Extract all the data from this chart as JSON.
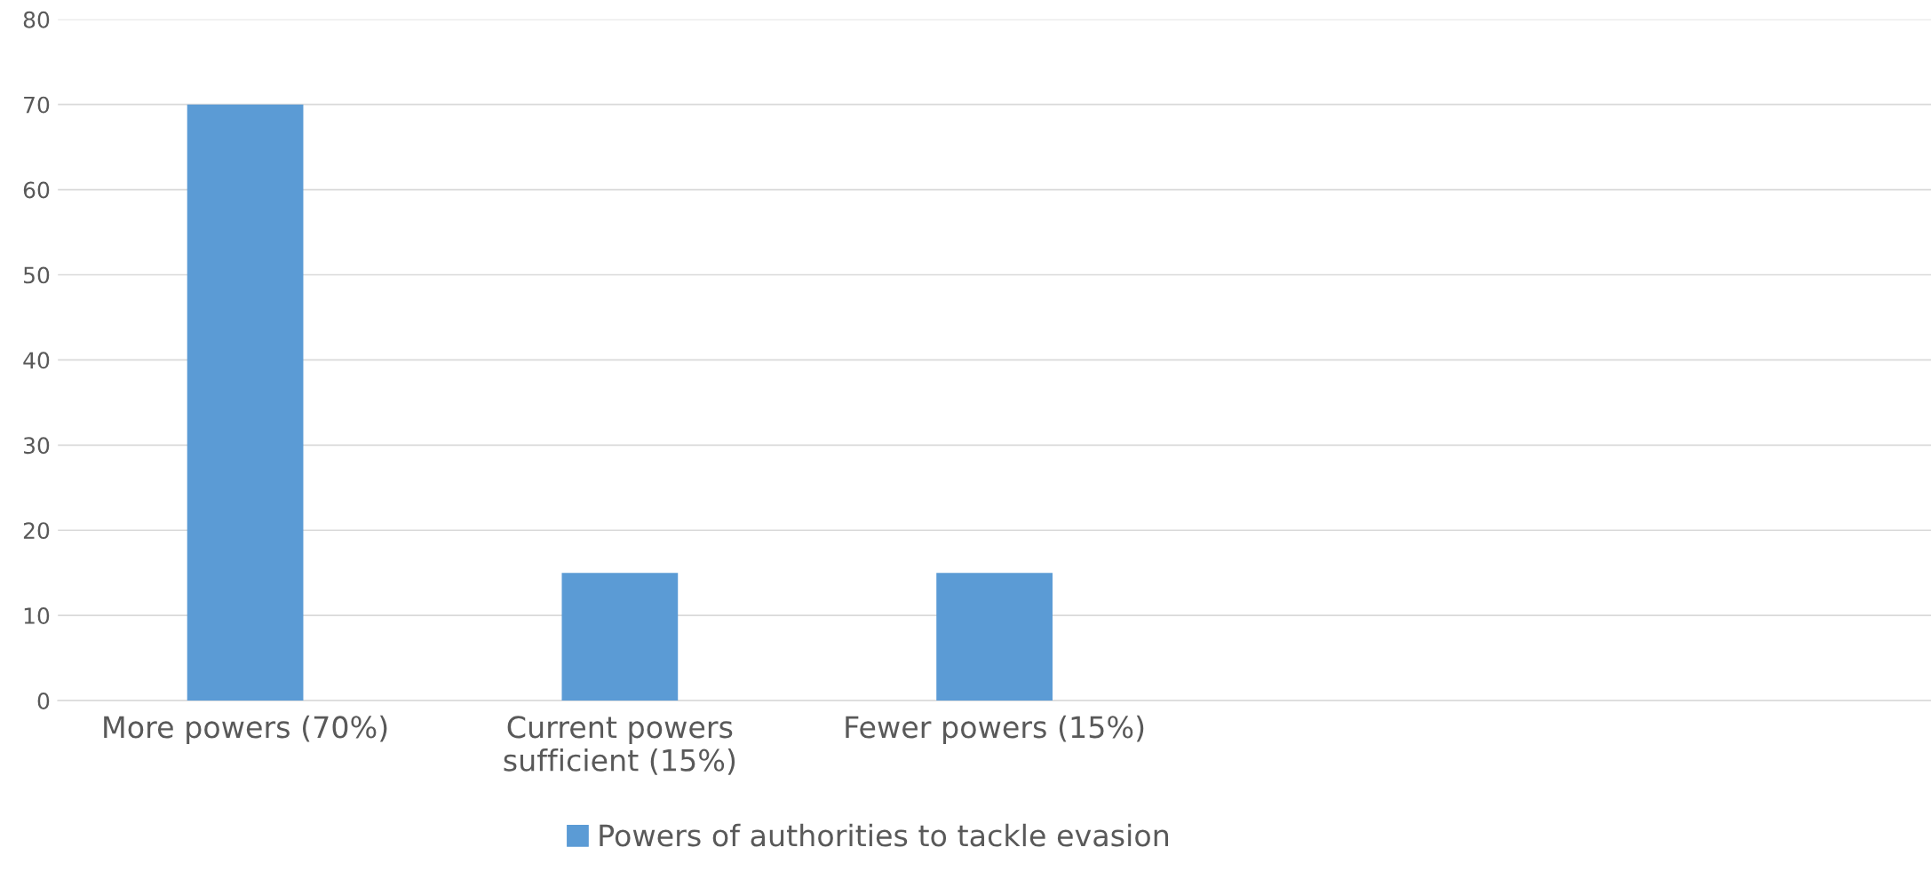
{
  "chart_data": {
    "type": "bar",
    "categories": [
      "More powers (70%)",
      "Current powers\nsufficient (15%)",
      "Fewer powers (15%)",
      null,
      null
    ],
    "series": [
      {
        "name": "Powers of authorities to tackle evasion",
        "color": "#5b9bd5",
        "values": [
          70,
          15,
          15,
          null,
          null
        ]
      }
    ],
    "ylim": [
      0,
      80
    ],
    "yticks": [
      0,
      10,
      20,
      30,
      40,
      50,
      60,
      70,
      80
    ],
    "grid": "y",
    "legend": "bottom"
  }
}
